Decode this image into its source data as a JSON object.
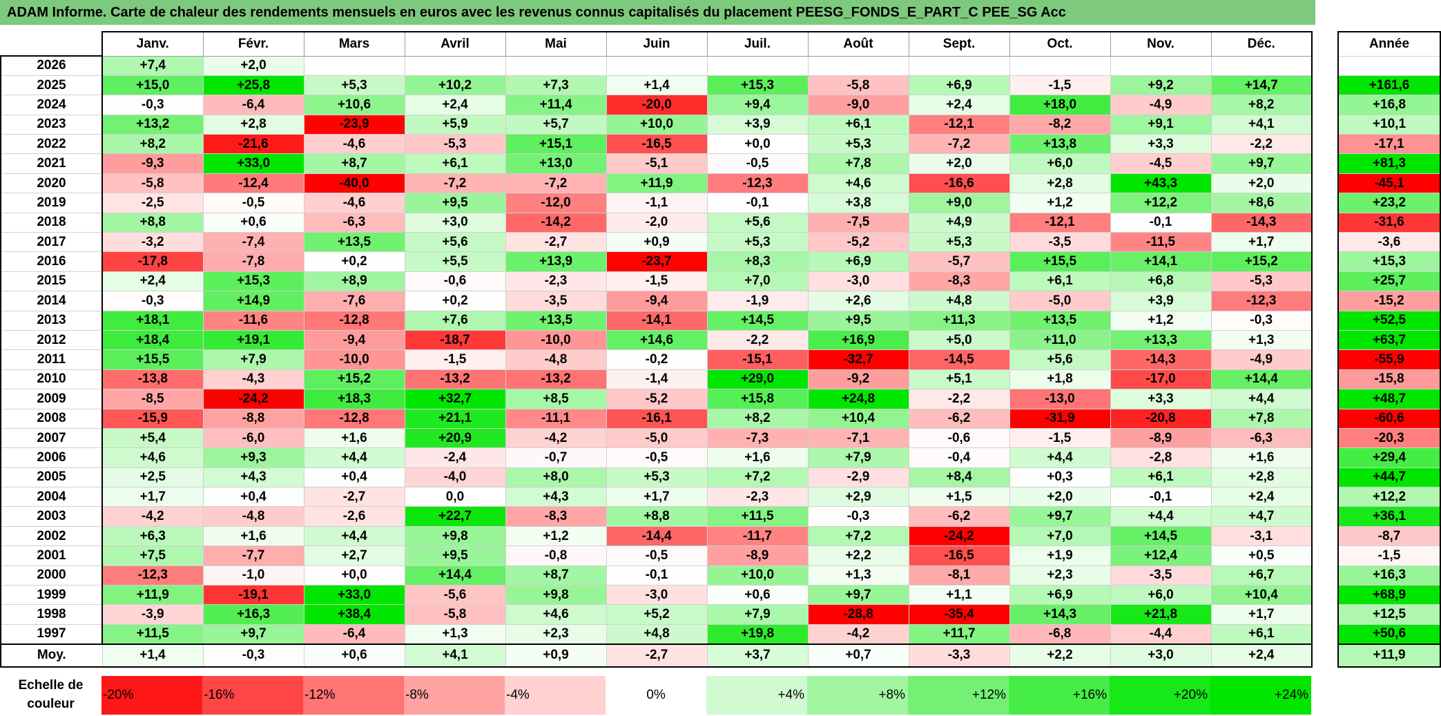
{
  "title": "ADAM Informe. Carte de chaleur des rendements mensuels en euros avec les revenus connus capitalisés du placement PEESG_FONDS_E_PART_C PEE_SG Acc",
  "year_header": "Année",
  "avg_label": "Moy.",
  "scale_label_line1": "Echelle de",
  "scale_label_line2": "couleur",
  "colors": {
    "title_bg": "#7dc97d",
    "neg_max": "#ff0000",
    "neutral": "#ffffff",
    "pos_max": "#00e600"
  },
  "chart_data": {
    "type": "heatmap",
    "title": "ADAM Informe. Carte de chaleur des rendements mensuels en euros avec les revenus connus capitalisés du placement PEESG_FONDS_E_PART_C PEE_SG Acc",
    "columns": [
      "Janv.",
      "Févr.",
      "Mars",
      "Avril",
      "Mai",
      "Juin",
      "Juil.",
      "Août",
      "Sept.",
      "Oct.",
      "Nov.",
      "Déc."
    ],
    "rows": [
      {
        "year": "2026",
        "values": [
          "+7,4",
          "+2,0",
          "",
          "",
          "",
          "",
          "",
          "",
          "",
          "",
          "",
          ""
        ],
        "annual": ""
      },
      {
        "year": "2025",
        "values": [
          "+15,0",
          "+25,8",
          "+5,3",
          "+10,2",
          "+7,3",
          "+1,4",
          "+15,3",
          "-5,8",
          "+6,9",
          "-1,5",
          "+9,2",
          "+14,7"
        ],
        "annual": "+161,6"
      },
      {
        "year": "2024",
        "values": [
          "-0,3",
          "-6,4",
          "+10,6",
          "+2,4",
          "+11,4",
          "-20,0",
          "+9,4",
          "-9,0",
          "+2,4",
          "+18,0",
          "-4,9",
          "+8,2"
        ],
        "annual": "+16,8"
      },
      {
        "year": "2023",
        "values": [
          "+13,2",
          "+2,8",
          "-23,9",
          "+5,9",
          "+5,7",
          "+10,0",
          "+3,9",
          "+6,1",
          "-12,1",
          "-8,2",
          "+9,1",
          "+4,1"
        ],
        "annual": "+10,1"
      },
      {
        "year": "2022",
        "values": [
          "+8,2",
          "-21,6",
          "-4,6",
          "-5,3",
          "+15,1",
          "-16,5",
          "+0,0",
          "+5,3",
          "-7,2",
          "+13,8",
          "+3,3",
          "-2,2"
        ],
        "annual": "-17,1"
      },
      {
        "year": "2021",
        "values": [
          "-9,3",
          "+33,0",
          "+8,7",
          "+6,1",
          "+13,0",
          "-5,1",
          "-0,5",
          "+7,8",
          "+2,0",
          "+6,0",
          "-4,5",
          "+9,7"
        ],
        "annual": "+81,3"
      },
      {
        "year": "2020",
        "values": [
          "-5,8",
          "-12,4",
          "-40,0",
          "-7,2",
          "-7,2",
          "+11,9",
          "-12,3",
          "+4,6",
          "-16,6",
          "+2,8",
          "+43,3",
          "+2,0"
        ],
        "annual": "-45,1"
      },
      {
        "year": "2019",
        "values": [
          "-2,5",
          "-0,5",
          "-4,6",
          "+9,5",
          "-12,0",
          "-1,1",
          "-0,1",
          "+3,8",
          "+9,0",
          "+1,2",
          "+12,2",
          "+8,6"
        ],
        "annual": "+23,2"
      },
      {
        "year": "2018",
        "values": [
          "+8,8",
          "+0,6",
          "-6,3",
          "+3,0",
          "-14,2",
          "-2,0",
          "+5,6",
          "-7,5",
          "+4,9",
          "-12,1",
          "-0,1",
          "-14,3"
        ],
        "annual": "-31,6"
      },
      {
        "year": "2017",
        "values": [
          "-3,2",
          "-7,4",
          "+13,5",
          "+5,6",
          "-2,7",
          "+0,9",
          "+5,3",
          "-5,2",
          "+5,3",
          "-3,5",
          "-11,5",
          "+1,7"
        ],
        "annual": "-3,6"
      },
      {
        "year": "2016",
        "values": [
          "-17,8",
          "-7,8",
          "+0,2",
          "+5,5",
          "+13,9",
          "-23,7",
          "+8,3",
          "+6,9",
          "-5,7",
          "+15,5",
          "+14,1",
          "+15,2"
        ],
        "annual": "+15,3"
      },
      {
        "year": "2015",
        "values": [
          "+2,4",
          "+15,3",
          "+8,9",
          "-0,6",
          "-2,3",
          "-1,5",
          "+7,0",
          "-3,0",
          "-8,3",
          "+6,1",
          "+6,8",
          "-5,3"
        ],
        "annual": "+25,7"
      },
      {
        "year": "2014",
        "values": [
          "-0,3",
          "+14,9",
          "-7,6",
          "+0,2",
          "-3,5",
          "-9,4",
          "-1,9",
          "+2,6",
          "+4,8",
          "-5,0",
          "+3,9",
          "-12,3"
        ],
        "annual": "-15,2"
      },
      {
        "year": "2013",
        "values": [
          "+18,1",
          "-11,6",
          "-12,8",
          "+7,6",
          "+13,5",
          "-14,1",
          "+14,5",
          "+9,5",
          "+11,3",
          "+13,5",
          "+1,2",
          "-0,3"
        ],
        "annual": "+52,5"
      },
      {
        "year": "2012",
        "values": [
          "+18,4",
          "+19,1",
          "-9,4",
          "-18,7",
          "-10,0",
          "+14,6",
          "-2,2",
          "+16,9",
          "+5,0",
          "+11,0",
          "+13,3",
          "+1,3"
        ],
        "annual": "+63,7"
      },
      {
        "year": "2011",
        "values": [
          "+15,5",
          "+7,9",
          "-10,0",
          "-1,5",
          "-4,8",
          "-0,2",
          "-15,1",
          "-32,7",
          "-14,5",
          "+5,6",
          "-14,3",
          "-4,9"
        ],
        "annual": "-55,9"
      },
      {
        "year": "2010",
        "values": [
          "-13,8",
          "-4,3",
          "+15,2",
          "-13,2",
          "-13,2",
          "-1,4",
          "+29,0",
          "-9,2",
          "+5,1",
          "+1,8",
          "-17,0",
          "+14,4"
        ],
        "annual": "-15,8"
      },
      {
        "year": "2009",
        "values": [
          "-8,5",
          "-24,2",
          "+18,3",
          "+32,7",
          "+8,5",
          "-5,2",
          "+15,8",
          "+24,8",
          "-2,2",
          "-13,0",
          "+3,3",
          "+4,4"
        ],
        "annual": "+48,7"
      },
      {
        "year": "2008",
        "values": [
          "-15,9",
          "-8,8",
          "-12,8",
          "+21,1",
          "-11,1",
          "-16,1",
          "+8,2",
          "+10,4",
          "-6,2",
          "-31,9",
          "-20,8",
          "+7,8"
        ],
        "annual": "-60,6"
      },
      {
        "year": "2007",
        "values": [
          "+5,4",
          "-6,0",
          "+1,6",
          "+20,9",
          "-4,2",
          "-5,0",
          "-7,3",
          "-7,1",
          "-0,6",
          "-1,5",
          "-8,9",
          "-6,3"
        ],
        "annual": "-20,3"
      },
      {
        "year": "2006",
        "values": [
          "+4,6",
          "+9,3",
          "+4,4",
          "-2,4",
          "-0,7",
          "-0,5",
          "+1,6",
          "+7,9",
          "-0,4",
          "+4,4",
          "-2,8",
          "+1,6"
        ],
        "annual": "+29,4"
      },
      {
        "year": "2005",
        "values": [
          "+2,5",
          "+4,3",
          "+0,4",
          "-4,0",
          "+8,0",
          "+5,3",
          "+7,2",
          "-2,9",
          "+8,4",
          "+0,3",
          "+6,1",
          "+2,8"
        ],
        "annual": "+44,7"
      },
      {
        "year": "2004",
        "values": [
          "+1,7",
          "+0,4",
          "-2,7",
          "0,0",
          "+4,3",
          "+1,7",
          "-2,3",
          "+2,9",
          "+1,5",
          "+2,0",
          "-0,1",
          "+2,4"
        ],
        "annual": "+12,2"
      },
      {
        "year": "2003",
        "values": [
          "-4,2",
          "-4,8",
          "-2,6",
          "+22,7",
          "-8,3",
          "+8,8",
          "+11,5",
          "-0,3",
          "-6,2",
          "+9,7",
          "+4,4",
          "+4,7"
        ],
        "annual": "+36,1"
      },
      {
        "year": "2002",
        "values": [
          "+6,3",
          "+1,6",
          "+4,4",
          "+9,8",
          "+1,2",
          "-14,4",
          "-11,7",
          "+7,2",
          "-24,2",
          "+7,0",
          "+14,5",
          "-3,1"
        ],
        "annual": "-8,7"
      },
      {
        "year": "2001",
        "values": [
          "+7,5",
          "-7,7",
          "+2,7",
          "+9,5",
          "-0,8",
          "-0,5",
          "-8,9",
          "+2,2",
          "-16,5",
          "+1,9",
          "+12,4",
          "+0,5"
        ],
        "annual": "-1,5"
      },
      {
        "year": "2000",
        "values": [
          "-12,3",
          "-1,0",
          "+0,0",
          "+14,4",
          "+8,7",
          "-0,1",
          "+10,0",
          "+1,3",
          "-8,1",
          "+2,3",
          "-3,5",
          "+6,7"
        ],
        "annual": "+16,3"
      },
      {
        "year": "1999",
        "values": [
          "+11,9",
          "-19,1",
          "+33,0",
          "-5,6",
          "+9,8",
          "-3,0",
          "+0,6",
          "+9,7",
          "+1,1",
          "+6,9",
          "+6,0",
          "+10,4"
        ],
        "annual": "+68,9"
      },
      {
        "year": "1998",
        "values": [
          "-3,9",
          "+16,3",
          "+38,4",
          "-5,8",
          "+4,6",
          "+5,2",
          "+7,9",
          "-28,8",
          "-35,4",
          "+14,3",
          "+21,8",
          "+1,7"
        ],
        "annual": "+12,5"
      },
      {
        "year": "1997",
        "values": [
          "+11,5",
          "+9,7",
          "-6,4",
          "+1,3",
          "+2,3",
          "+4,8",
          "+19,8",
          "-4,2",
          "+11,7",
          "-6,8",
          "-4,4",
          "+6,1"
        ],
        "annual": "+50,6"
      }
    ],
    "average": {
      "values": [
        "+1,4",
        "-0,3",
        "+0,6",
        "+4,1",
        "+0,9",
        "-2,7",
        "+3,7",
        "+0,7",
        "-3,3",
        "+2,2",
        "+3,0",
        "+2,4"
      ],
      "annual": "+11,9"
    },
    "scale": [
      "-20%",
      "-16%",
      "-12%",
      "-8%",
      "-4%",
      "0%",
      "+4%",
      "+8%",
      "+12%",
      "+16%",
      "+20%",
      "+24%"
    ]
  }
}
